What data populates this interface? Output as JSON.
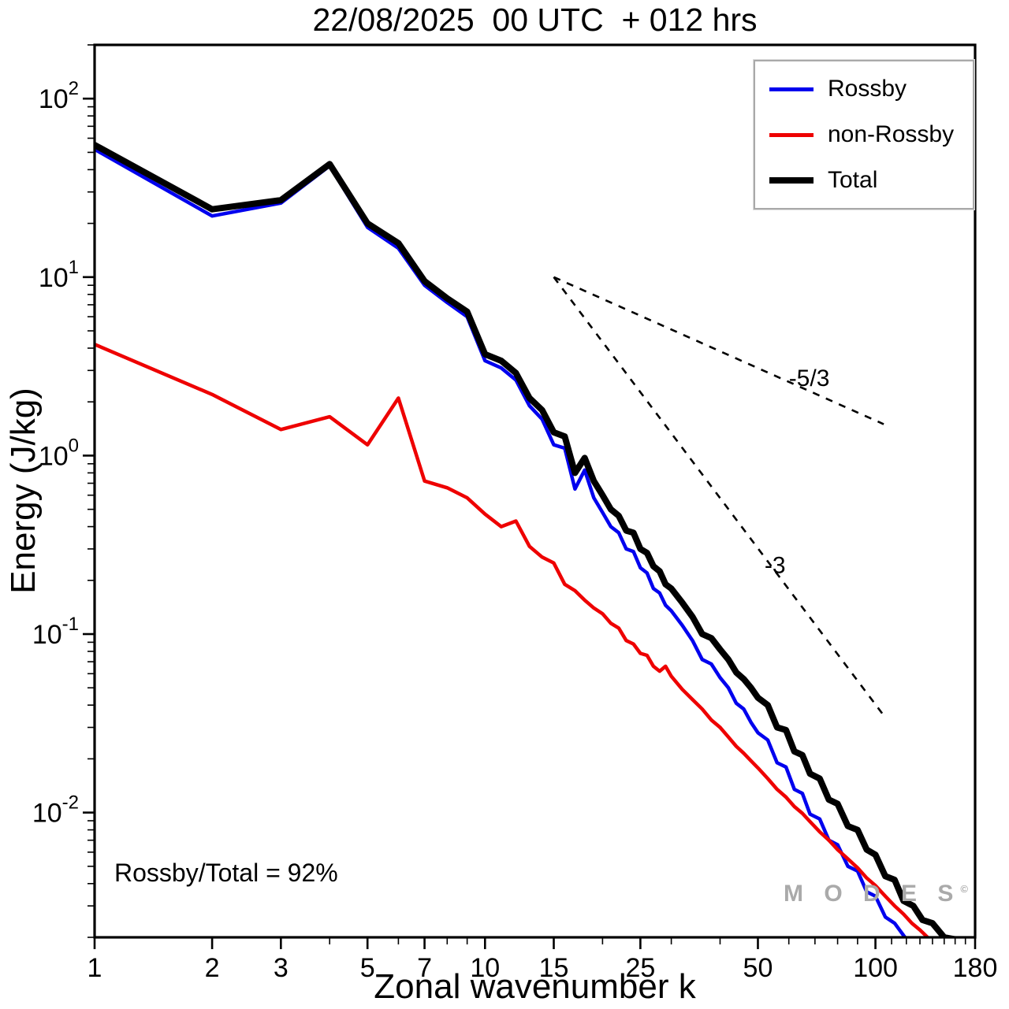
{
  "chart_data": {
    "type": "line",
    "title": "22/08/2025  00 UTC  + 012 hrs",
    "xlabel": "Zonal wavenumber k",
    "ylabel": "Energy (J/kg)",
    "x_scale": "log",
    "y_scale": "log",
    "xlim": [
      1,
      180
    ],
    "ylim": [
      0.002,
      200
    ],
    "grid": false,
    "legend_position": "top-right",
    "x_ticks": [
      1,
      2,
      3,
      5,
      7,
      10,
      15,
      25,
      50,
      100,
      180
    ],
    "x_minor_ticks": [
      4,
      6,
      8,
      9,
      20,
      30,
      40,
      60,
      70,
      80,
      90,
      110,
      120,
      130,
      140,
      150,
      160,
      170
    ],
    "y_tick_exponents": [
      2,
      1,
      0,
      -1,
      -2
    ],
    "annotation": "Rossby/Total = 92%",
    "watermark": {
      "text": "M O D E S",
      "sup": "©"
    },
    "reference_lines": [
      {
        "label": "-5/3",
        "from": [
          15,
          10
        ],
        "to": [
          105,
          1.5
        ],
        "label_pos": [
          60,
          2.45
        ]
      },
      {
        "label": "-3",
        "from": [
          15,
          10
        ],
        "to": [
          105,
          0.035
        ],
        "label_pos": [
          52,
          0.22
        ]
      }
    ],
    "series": [
      {
        "name": "Rossby",
        "id": "rossby-line",
        "color": "#0000ee",
        "width": 4.5,
        "points": [
          [
            1,
            52
          ],
          [
            2,
            22
          ],
          [
            3,
            26
          ],
          [
            4,
            42
          ],
          [
            5,
            19
          ],
          [
            6,
            14.5
          ],
          [
            7,
            9
          ],
          [
            8,
            7.2
          ],
          [
            9,
            6
          ],
          [
            10,
            3.4
          ],
          [
            11,
            3.1
          ],
          [
            12,
            2.65
          ],
          [
            13,
            1.9
          ],
          [
            14,
            1.6
          ],
          [
            15,
            1.15
          ],
          [
            16,
            1.1
          ],
          [
            17,
            0.65
          ],
          [
            18,
            0.83
          ],
          [
            19,
            0.58
          ],
          [
            20,
            0.48
          ],
          [
            21,
            0.4
          ],
          [
            22,
            0.37
          ],
          [
            23,
            0.3
          ],
          [
            24,
            0.29
          ],
          [
            25,
            0.235
          ],
          [
            26,
            0.22
          ],
          [
            27,
            0.18
          ],
          [
            28,
            0.17
          ],
          [
            29,
            0.145
          ],
          [
            30,
            0.135
          ],
          [
            32,
            0.112
          ],
          [
            34,
            0.092
          ],
          [
            36,
            0.072
          ],
          [
            38,
            0.068
          ],
          [
            40,
            0.057
          ],
          [
            42,
            0.05
          ],
          [
            44,
            0.041
          ],
          [
            46,
            0.038
          ],
          [
            48,
            0.032
          ],
          [
            50,
            0.028
          ],
          [
            53,
            0.0255
          ],
          [
            56,
            0.019
          ],
          [
            59,
            0.018
          ],
          [
            62,
            0.0135
          ],
          [
            65,
            0.0128
          ],
          [
            68,
            0.0098
          ],
          [
            72,
            0.0092
          ],
          [
            76,
            0.007
          ],
          [
            80,
            0.0066
          ],
          [
            85,
            0.005
          ],
          [
            90,
            0.0047
          ],
          [
            95,
            0.0036
          ],
          [
            100,
            0.0034
          ],
          [
            106,
            0.0026
          ],
          [
            112,
            0.0024
          ],
          [
            119,
            0.002
          ]
        ]
      },
      {
        "name": "non-Rossby",
        "id": "non-rossby-line",
        "color": "#ee0000",
        "width": 4.5,
        "points": [
          [
            1,
            4.2
          ],
          [
            2,
            2.2
          ],
          [
            3,
            1.4
          ],
          [
            4,
            1.65
          ],
          [
            5,
            1.15
          ],
          [
            6,
            2.1
          ],
          [
            7,
            0.72
          ],
          [
            8,
            0.66
          ],
          [
            9,
            0.58
          ],
          [
            10,
            0.47
          ],
          [
            11,
            0.4
          ],
          [
            12,
            0.43
          ],
          [
            13,
            0.31
          ],
          [
            14,
            0.27
          ],
          [
            15,
            0.25
          ],
          [
            16,
            0.19
          ],
          [
            17,
            0.175
          ],
          [
            18,
            0.155
          ],
          [
            19,
            0.14
          ],
          [
            20,
            0.13
          ],
          [
            21,
            0.115
          ],
          [
            22,
            0.108
          ],
          [
            23,
            0.092
          ],
          [
            24,
            0.088
          ],
          [
            25,
            0.078
          ],
          [
            26,
            0.076
          ],
          [
            27,
            0.066
          ],
          [
            28,
            0.062
          ],
          [
            29,
            0.066
          ],
          [
            30,
            0.058
          ],
          [
            32,
            0.049
          ],
          [
            34,
            0.043
          ],
          [
            36,
            0.038
          ],
          [
            38,
            0.033
          ],
          [
            40,
            0.03
          ],
          [
            42,
            0.0265
          ],
          [
            44,
            0.0235
          ],
          [
            46,
            0.0215
          ],
          [
            48,
            0.0195
          ],
          [
            50,
            0.0178
          ],
          [
            53,
            0.0155
          ],
          [
            56,
            0.0135
          ],
          [
            59,
            0.0122
          ],
          [
            62,
            0.0108
          ],
          [
            65,
            0.0099
          ],
          [
            68,
            0.0089
          ],
          [
            72,
            0.0078
          ],
          [
            76,
            0.007
          ],
          [
            80,
            0.0062
          ],
          [
            85,
            0.0055
          ],
          [
            90,
            0.0049
          ],
          [
            95,
            0.0043
          ],
          [
            100,
            0.0039
          ],
          [
            106,
            0.0034
          ],
          [
            112,
            0.003
          ],
          [
            118,
            0.0027
          ],
          [
            124,
            0.0024
          ],
          [
            130,
            0.0022
          ],
          [
            136,
            0.002
          ]
        ]
      },
      {
        "name": "Total",
        "id": "total-line",
        "color": "#000000",
        "width": 8,
        "points": [
          [
            1,
            55
          ],
          [
            2,
            24
          ],
          [
            3,
            27
          ],
          [
            4,
            43
          ],
          [
            5,
            20
          ],
          [
            6,
            15.5
          ],
          [
            7,
            9.5
          ],
          [
            8,
            7.6
          ],
          [
            9,
            6.4
          ],
          [
            10,
            3.7
          ],
          [
            11,
            3.4
          ],
          [
            12,
            2.9
          ],
          [
            13,
            2.1
          ],
          [
            14,
            1.8
          ],
          [
            15,
            1.35
          ],
          [
            16,
            1.28
          ],
          [
            17,
            0.8
          ],
          [
            18,
            0.97
          ],
          [
            19,
            0.72
          ],
          [
            20,
            0.6
          ],
          [
            21,
            0.5
          ],
          [
            22,
            0.46
          ],
          [
            23,
            0.38
          ],
          [
            24,
            0.37
          ],
          [
            25,
            0.3
          ],
          [
            26,
            0.285
          ],
          [
            27,
            0.24
          ],
          [
            28,
            0.225
          ],
          [
            29,
            0.19
          ],
          [
            30,
            0.18
          ],
          [
            32,
            0.15
          ],
          [
            34,
            0.125
          ],
          [
            36,
            0.1
          ],
          [
            38,
            0.095
          ],
          [
            40,
            0.082
          ],
          [
            42,
            0.072
          ],
          [
            44,
            0.061
          ],
          [
            46,
            0.056
          ],
          [
            48,
            0.05
          ],
          [
            50,
            0.044
          ],
          [
            53,
            0.04
          ],
          [
            56,
            0.03
          ],
          [
            59,
            0.029
          ],
          [
            62,
            0.022
          ],
          [
            65,
            0.021
          ],
          [
            68,
            0.0165
          ],
          [
            72,
            0.0155
          ],
          [
            76,
            0.0118
          ],
          [
            80,
            0.0112
          ],
          [
            85,
            0.0084
          ],
          [
            90,
            0.008
          ],
          [
            95,
            0.0062
          ],
          [
            100,
            0.0058
          ],
          [
            106,
            0.0044
          ],
          [
            112,
            0.0042
          ],
          [
            118,
            0.0032
          ],
          [
            125,
            0.003
          ],
          [
            132,
            0.0025
          ],
          [
            140,
            0.0024
          ],
          [
            150,
            0.002
          ],
          [
            160,
            0.00195
          ]
        ]
      }
    ]
  }
}
